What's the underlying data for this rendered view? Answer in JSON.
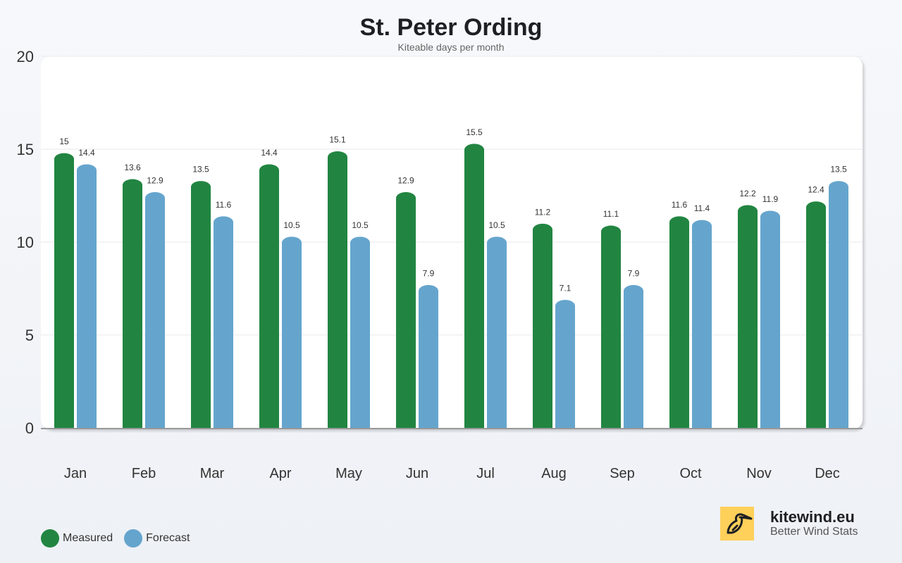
{
  "chart_data": {
    "type": "bar",
    "title": "St. Peter Ording",
    "subtitle": "Kiteable days per month",
    "categories": [
      "Jan",
      "Feb",
      "Mar",
      "Apr",
      "May",
      "Jun",
      "Jul",
      "Aug",
      "Sep",
      "Oct",
      "Nov",
      "Dec"
    ],
    "series": [
      {
        "name": "Measured",
        "color": "#218541",
        "values": [
          15,
          13.6,
          13.5,
          14.4,
          15.1,
          12.9,
          15.5,
          11.2,
          11.1,
          11.6,
          12.2,
          12.4
        ]
      },
      {
        "name": "Forecast",
        "color": "#65a5cd",
        "values": [
          14.4,
          12.9,
          11.6,
          10.5,
          10.5,
          7.9,
          10.5,
          7.1,
          7.9,
          11.4,
          11.9,
          13.5
        ]
      }
    ],
    "ylim": [
      0,
      20
    ],
    "yticks": [
      0,
      5,
      10,
      15,
      20
    ],
    "grid": true,
    "data_labels": true,
    "legend_position": "bottom-left"
  },
  "brand": {
    "name": "kitewind.eu",
    "tagline": "Better Wind Stats",
    "logo_icon": "bird-icon",
    "logo_color": "#ffd05a"
  }
}
